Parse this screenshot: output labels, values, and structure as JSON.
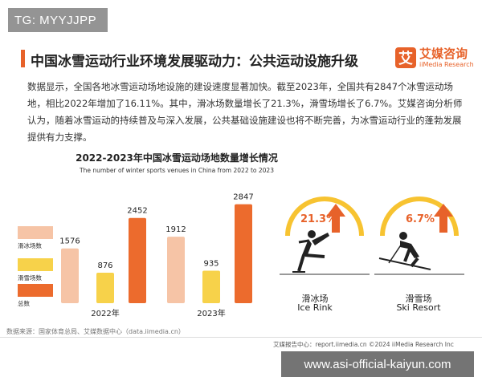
{
  "watermark_top": "TG: MYYJJPP",
  "watermark_bottom": "www.asi-official-kaiyun.com",
  "title": "中国冰雪运动行业环境发展驱动力：公共运动设施升级",
  "logo": {
    "mark": "艾",
    "cn": "艾媒咨询",
    "en": "iiMedia Research"
  },
  "paragraph": "数据显示，全国各地冰雪运动场地设施的建设速度显著加快。截至2023年，全国共有2847个冰雪运动场地，相比2022年增加了16.11%。其中，滑冰场数量增长了21.3%，滑雪场增长了6.7%。艾媒咨询分析师认为，随着冰雪运动的持续普及与深入发展，公共基础设施建设也将不断完善，为冰雪运动行业的蓬勃发展提供有力支撑。",
  "chart_data": {
    "type": "bar",
    "title": "2022-2023年中国冰雪运动场地数量增长情况",
    "subtitle": "The number of winter sports venues in China from 2022 to 2023",
    "categories": [
      "2022年",
      "2023年"
    ],
    "series": [
      {
        "name": "滑冰场数",
        "values": [
          1576,
          1912
        ],
        "color": "#f6c4a6"
      },
      {
        "name": "滑雪场数",
        "values": [
          876,
          935
        ],
        "color": "#f7d24a"
      },
      {
        "name": "总数",
        "values": [
          2452,
          2847
        ],
        "color": "#ec6b2d"
      }
    ],
    "ylim": [
      0,
      3000
    ],
    "grid": false,
    "legend": "left"
  },
  "stats": [
    {
      "pct": "21.3%",
      "cn": "滑冰场",
      "en": "Ice Rink",
      "icon": "ice-skater-icon"
    },
    {
      "pct": "6.7%",
      "cn": "滑雪场",
      "en": "Ski Resort",
      "icon": "skier-icon"
    }
  ],
  "colors": {
    "accent": "#e7622a",
    "ring": "#f7c331",
    "arrow": "#e7622a"
  },
  "source": "数据来源：国家体育总局、艾媒数据中心（data.iimedia.cn）",
  "footer_right": "艾媒报告中心：report.iimedia.cn  ©2024  iiMedia Research Inc"
}
